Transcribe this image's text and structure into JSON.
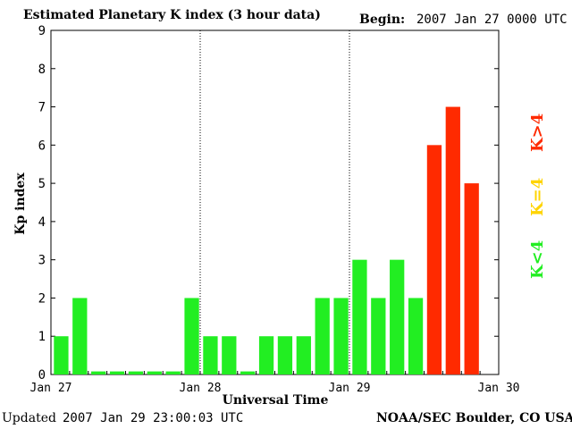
{
  "header": {
    "title": "Estimated Planetary K index (3 hour data)",
    "begin_label": "Begin:",
    "begin_value": "2007 Jan 27 0000 UTC"
  },
  "footer": {
    "updated_label": "Updated",
    "updated_value": "2007 Jan 29 23:00:03 UTC",
    "org": "NOAA/SEC Boulder, CO USA"
  },
  "legend": {
    "low": "K<4",
    "mid": "K=4",
    "high": "K>4"
  },
  "colors": {
    "low": "#22ee22",
    "mid": "#ffd400",
    "high": "#ff2a00"
  },
  "chart_data": {
    "type": "bar",
    "title": "Estimated Planetary K index (3 hour data)",
    "xlabel": "Universal Time",
    "ylabel": "Kp index",
    "ylim": [
      0,
      9
    ],
    "yticks": [
      "0",
      "1",
      "2",
      "3",
      "4",
      "5",
      "6",
      "7",
      "8",
      "9"
    ],
    "xticks": [
      "Jan 27",
      "Jan 28",
      "Jan 29",
      "Jan 30"
    ],
    "values": [
      1,
      2,
      0,
      0,
      0,
      0,
      0,
      2,
      1,
      1,
      0,
      1,
      1,
      1,
      2,
      2,
      3,
      2,
      3,
      2,
      6,
      7,
      5
    ],
    "grid": "dotted day separators"
  }
}
